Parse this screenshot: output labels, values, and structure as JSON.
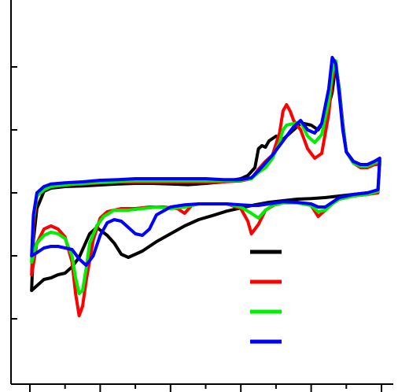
{
  "chart_data": {
    "type": "line",
    "title": "",
    "xlabel": "",
    "ylabel": "",
    "xlim": [
      0,
      100
    ],
    "ylim": [
      -6,
      6
    ],
    "grid": false,
    "legend_placement": "bottom-right",
    "tick_labels_visible": false,
    "series": [
      {
        "color": "#000000",
        "points": [
          [
            0.5,
            -3.1
          ],
          [
            1,
            -1.5
          ],
          [
            2,
            -0.5
          ],
          [
            4,
            0.05
          ],
          [
            6,
            0.15
          ],
          [
            10,
            0.2
          ],
          [
            15,
            0.22
          ],
          [
            20,
            0.25
          ],
          [
            25,
            0.28
          ],
          [
            30,
            0.3
          ],
          [
            35,
            0.3
          ],
          [
            40,
            0.28
          ],
          [
            45,
            0.26
          ],
          [
            50,
            0.3
          ],
          [
            55,
            0.35
          ],
          [
            60,
            0.45
          ],
          [
            62,
            0.55
          ],
          [
            64,
            0.8
          ],
          [
            65,
            1.4
          ],
          [
            66,
            1.5
          ],
          [
            67,
            1.45
          ],
          [
            68,
            1.65
          ],
          [
            70,
            1.8
          ],
          [
            72,
            1.7
          ],
          [
            74,
            1.9
          ],
          [
            76,
            2.1
          ],
          [
            77,
            2.2
          ],
          [
            78,
            2.2
          ],
          [
            80,
            2.15
          ],
          [
            82,
            2.0
          ],
          [
            84,
            2.35
          ],
          [
            86,
            3.2
          ],
          [
            87,
            4.1
          ],
          [
            88,
            3.3
          ],
          [
            89,
            2.2
          ],
          [
            90,
            1.3
          ],
          [
            92,
            1.0
          ],
          [
            94,
            0.9
          ],
          [
            96,
            0.85
          ],
          [
            98,
            0.95
          ],
          [
            99.5,
            1.0
          ],
          [
            99,
            0.05
          ],
          [
            96,
            0.0
          ],
          [
            92,
            -0.05
          ],
          [
            88,
            -0.1
          ],
          [
            84,
            -0.15
          ],
          [
            80,
            -0.18
          ],
          [
            76,
            -0.2
          ],
          [
            72,
            -0.25
          ],
          [
            68,
            -0.3
          ],
          [
            64,
            -0.38
          ],
          [
            60,
            -0.48
          ],
          [
            56,
            -0.58
          ],
          [
            52,
            -0.72
          ],
          [
            48,
            -0.85
          ],
          [
            44,
            -1.05
          ],
          [
            40,
            -1.3
          ],
          [
            36,
            -1.55
          ],
          [
            32,
            -1.85
          ],
          [
            28,
            -2.05
          ],
          [
            26,
            -1.95
          ],
          [
            24,
            -1.6
          ],
          [
            22,
            -1.35
          ],
          [
            19,
            -1.1
          ],
          [
            17,
            -1.3
          ],
          [
            16,
            -1.55
          ],
          [
            14,
            -2.05
          ],
          [
            12,
            -2.35
          ],
          [
            10,
            -2.55
          ],
          [
            8,
            -2.6
          ],
          [
            6,
            -2.7
          ],
          [
            4,
            -2.75
          ],
          [
            2,
            -2.95
          ],
          [
            0.5,
            -3.1
          ]
        ]
      },
      {
        "color": "#ff0000",
        "points": [
          [
            0.5,
            -2.6
          ],
          [
            1,
            -1.0
          ],
          [
            2,
            -0.1
          ],
          [
            4,
            0.1
          ],
          [
            6,
            0.2
          ],
          [
            10,
            0.25
          ],
          [
            15,
            0.28
          ],
          [
            20,
            0.32
          ],
          [
            25,
            0.35
          ],
          [
            30,
            0.35
          ],
          [
            35,
            0.35
          ],
          [
            40,
            0.35
          ],
          [
            45,
            0.35
          ],
          [
            50,
            0.35
          ],
          [
            55,
            0.35
          ],
          [
            60,
            0.38
          ],
          [
            63,
            0.45
          ],
          [
            65,
            0.75
          ],
          [
            67,
            1.0
          ],
          [
            69,
            1.2
          ],
          [
            71,
            1.9
          ],
          [
            72,
            2.6
          ],
          [
            73,
            2.8
          ],
          [
            74,
            2.6
          ],
          [
            75,
            2.3
          ],
          [
            77,
            2.0
          ],
          [
            79,
            1.4
          ],
          [
            81,
            1.1
          ],
          [
            83,
            1.25
          ],
          [
            85,
            2.5
          ],
          [
            86,
            3.6
          ],
          [
            87,
            4.1
          ],
          [
            88,
            3.2
          ],
          [
            89,
            2.1
          ],
          [
            90,
            1.3
          ],
          [
            92,
            0.95
          ],
          [
            94,
            0.8
          ],
          [
            96,
            0.8
          ],
          [
            98,
            0.9
          ],
          [
            99.5,
            0.9
          ],
          [
            99,
            0.0
          ],
          [
            96,
            -0.05
          ],
          [
            92,
            -0.1
          ],
          [
            88,
            -0.2
          ],
          [
            86,
            -0.35
          ],
          [
            84,
            -0.55
          ],
          [
            82,
            -0.75
          ],
          [
            80,
            -0.4
          ],
          [
            76,
            -0.3
          ],
          [
            72,
            -0.3
          ],
          [
            70,
            -0.35
          ],
          [
            67,
            -0.55
          ],
          [
            65,
            -1.0
          ],
          [
            63,
            -1.3
          ],
          [
            62,
            -0.9
          ],
          [
            60,
            -0.5
          ],
          [
            56,
            -0.35
          ],
          [
            52,
            -0.35
          ],
          [
            48,
            -0.35
          ],
          [
            46,
            -0.4
          ],
          [
            44,
            -0.65
          ],
          [
            42,
            -0.5
          ],
          [
            38,
            -0.45
          ],
          [
            34,
            -0.45
          ],
          [
            30,
            -0.5
          ],
          [
            26,
            -0.5
          ],
          [
            22,
            -0.6
          ],
          [
            20,
            -0.8
          ],
          [
            18,
            -1.5
          ],
          [
            16,
            -2.8
          ],
          [
            15,
            -3.6
          ],
          [
            14,
            -3.9
          ],
          [
            13,
            -3.2
          ],
          [
            12,
            -2.2
          ],
          [
            10,
            -1.4
          ],
          [
            8,
            -1.15
          ],
          [
            6,
            -1.05
          ],
          [
            4,
            -1.15
          ],
          [
            2,
            -1.6
          ],
          [
            0.5,
            -2.6
          ]
        ]
      },
      {
        "color": "#00ee00",
        "points": [
          [
            0.5,
            -2.2
          ],
          [
            1,
            -0.8
          ],
          [
            2,
            -0.1
          ],
          [
            4,
            0.1
          ],
          [
            6,
            0.2
          ],
          [
            10,
            0.25
          ],
          [
            15,
            0.3
          ],
          [
            20,
            0.33
          ],
          [
            25,
            0.36
          ],
          [
            30,
            0.38
          ],
          [
            35,
            0.38
          ],
          [
            40,
            0.38
          ],
          [
            45,
            0.38
          ],
          [
            50,
            0.38
          ],
          [
            55,
            0.38
          ],
          [
            60,
            0.4
          ],
          [
            63,
            0.45
          ],
          [
            65,
            0.65
          ],
          [
            67,
            0.8
          ],
          [
            69,
            1.1
          ],
          [
            71,
            1.6
          ],
          [
            72,
            2.0
          ],
          [
            73,
            2.15
          ],
          [
            75,
            2.2
          ],
          [
            77,
            2.25
          ],
          [
            79,
            1.8
          ],
          [
            81,
            1.6
          ],
          [
            83,
            1.85
          ],
          [
            85,
            2.9
          ],
          [
            86,
            3.8
          ],
          [
            87,
            4.2
          ],
          [
            88,
            3.2
          ],
          [
            89,
            2.1
          ],
          [
            90,
            1.3
          ],
          [
            92,
            0.95
          ],
          [
            94,
            0.85
          ],
          [
            96,
            0.85
          ],
          [
            98,
            0.95
          ],
          [
            99.5,
            1.0
          ],
          [
            99,
            0.05
          ],
          [
            96,
            -0.05
          ],
          [
            92,
            -0.1
          ],
          [
            88,
            -0.2
          ],
          [
            86,
            -0.35
          ],
          [
            84,
            -0.55
          ],
          [
            82,
            -0.6
          ],
          [
            80,
            -0.4
          ],
          [
            76,
            -0.32
          ],
          [
            72,
            -0.32
          ],
          [
            69,
            -0.4
          ],
          [
            67,
            -0.55
          ],
          [
            65,
            -0.8
          ],
          [
            63,
            -0.65
          ],
          [
            60,
            -0.45
          ],
          [
            56,
            -0.35
          ],
          [
            52,
            -0.35
          ],
          [
            48,
            -0.35
          ],
          [
            44,
            -0.45
          ],
          [
            40,
            -0.5
          ],
          [
            36,
            -0.45
          ],
          [
            32,
            -0.5
          ],
          [
            28,
            -0.55
          ],
          [
            24,
            -0.55
          ],
          [
            21,
            -0.75
          ],
          [
            19,
            -1.05
          ],
          [
            17,
            -1.6
          ],
          [
            16,
            -2.4
          ],
          [
            15,
            -3.1
          ],
          [
            14,
            -3.2
          ],
          [
            13,
            -2.7
          ],
          [
            12,
            -2.0
          ],
          [
            10,
            -1.45
          ],
          [
            8,
            -1.3
          ],
          [
            6,
            -1.25
          ],
          [
            4,
            -1.35
          ],
          [
            2,
            -1.6
          ],
          [
            0.5,
            -2.2
          ]
        ]
      },
      {
        "color": "#0000ff",
        "points": [
          [
            0.5,
            -2.0
          ],
          [
            1,
            -0.7
          ],
          [
            2,
            0.0
          ],
          [
            4,
            0.2
          ],
          [
            6,
            0.28
          ],
          [
            10,
            0.32
          ],
          [
            15,
            0.35
          ],
          [
            20,
            0.4
          ],
          [
            25,
            0.42
          ],
          [
            30,
            0.45
          ],
          [
            35,
            0.45
          ],
          [
            40,
            0.45
          ],
          [
            45,
            0.45
          ],
          [
            50,
            0.45
          ],
          [
            55,
            0.42
          ],
          [
            60,
            0.42
          ],
          [
            63,
            0.48
          ],
          [
            65,
            0.7
          ],
          [
            67,
            0.95
          ],
          [
            69,
            1.2
          ],
          [
            71,
            1.5
          ],
          [
            73,
            1.8
          ],
          [
            75,
            2.1
          ],
          [
            77,
            2.3
          ],
          [
            79,
            2.0
          ],
          [
            81,
            1.9
          ],
          [
            83,
            2.2
          ],
          [
            85,
            3.3
          ],
          [
            86,
            4.3
          ],
          [
            87,
            4.1
          ],
          [
            88,
            3.1
          ],
          [
            89,
            2.0
          ],
          [
            90,
            1.3
          ],
          [
            92,
            1.0
          ],
          [
            94,
            0.9
          ],
          [
            96,
            0.9
          ],
          [
            98,
            1.0
          ],
          [
            99.5,
            1.1
          ],
          [
            99,
            0.1
          ],
          [
            96,
            0.0
          ],
          [
            92,
            -0.05
          ],
          [
            88,
            -0.15
          ],
          [
            86,
            -0.3
          ],
          [
            84,
            -0.45
          ],
          [
            82,
            -0.45
          ],
          [
            80,
            -0.35
          ],
          [
            76,
            -0.3
          ],
          [
            72,
            -0.28
          ],
          [
            68,
            -0.35
          ],
          [
            65,
            -0.4
          ],
          [
            63,
            -0.4
          ],
          [
            60,
            -0.38
          ],
          [
            56,
            -0.35
          ],
          [
            52,
            -0.35
          ],
          [
            48,
            -0.35
          ],
          [
            44,
            -0.38
          ],
          [
            40,
            -0.45
          ],
          [
            36,
            -0.7
          ],
          [
            34,
            -1.15
          ],
          [
            32,
            -1.35
          ],
          [
            30,
            -1.3
          ],
          [
            28,
            -1.1
          ],
          [
            26,
            -0.9
          ],
          [
            24,
            -0.85
          ],
          [
            22,
            -0.95
          ],
          [
            20,
            -1.35
          ],
          [
            18,
            -2.0
          ],
          [
            16,
            -2.3
          ],
          [
            14,
            -2.1
          ],
          [
            12,
            -1.8
          ],
          [
            10,
            -1.75
          ],
          [
            8,
            -1.7
          ],
          [
            6,
            -1.7
          ],
          [
            4,
            -1.75
          ],
          [
            2,
            -1.9
          ],
          [
            0.5,
            -2.0
          ]
        ]
      }
    ],
    "legend": {
      "entries": [
        {
          "color": "#000000"
        },
        {
          "color": "#ff0000"
        },
        {
          "color": "#00ee00"
        },
        {
          "color": "#0000ff"
        }
      ]
    }
  }
}
